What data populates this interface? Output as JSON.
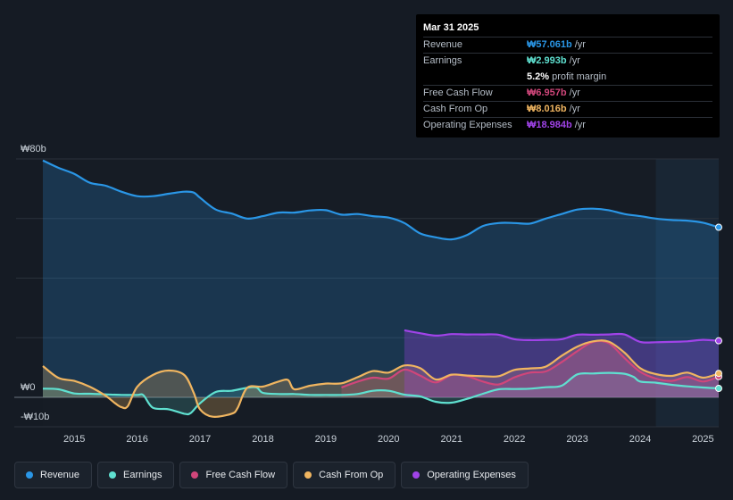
{
  "chart_data": {
    "type": "area",
    "currency": "₩",
    "y_axis": {
      "top_label": "₩80b",
      "zero_label": "₩0",
      "bottom_label": "-₩10b",
      "ylim": [
        -10,
        80
      ]
    },
    "x_axis": {
      "ticks": [
        "2015",
        "2016",
        "2017",
        "2018",
        "2019",
        "2020",
        "2021",
        "2022",
        "2023",
        "2024",
        "2025"
      ],
      "xlim": [
        2014.5,
        2025.25
      ]
    },
    "forecast_start": 2024.25,
    "series": [
      {
        "name": "Revenue",
        "color": "#2a96e6",
        "points": [
          [
            2014.5,
            79.5
          ],
          [
            2014.75,
            77
          ],
          [
            2015.0,
            75
          ],
          [
            2015.25,
            72
          ],
          [
            2015.5,
            71
          ],
          [
            2015.75,
            69
          ],
          [
            2016.0,
            67.5
          ],
          [
            2016.25,
            67.5
          ],
          [
            2016.5,
            68.3
          ],
          [
            2016.75,
            69
          ],
          [
            2016.9,
            68.7
          ],
          [
            2017.0,
            67
          ],
          [
            2017.25,
            63
          ],
          [
            2017.5,
            61.7
          ],
          [
            2017.75,
            60
          ],
          [
            2018.0,
            60.8
          ],
          [
            2018.25,
            62
          ],
          [
            2018.5,
            62
          ],
          [
            2018.75,
            62.7
          ],
          [
            2019.0,
            62.8
          ],
          [
            2019.25,
            61.3
          ],
          [
            2019.5,
            61.5
          ],
          [
            2019.75,
            60.8
          ],
          [
            2020.0,
            60.3
          ],
          [
            2020.25,
            58.5
          ],
          [
            2020.5,
            55
          ],
          [
            2020.75,
            53.7
          ],
          [
            2021.0,
            53
          ],
          [
            2021.25,
            54.5
          ],
          [
            2021.5,
            57.5
          ],
          [
            2021.75,
            58.5
          ],
          [
            2022.0,
            58.5
          ],
          [
            2022.25,
            58.3
          ],
          [
            2022.5,
            60
          ],
          [
            2022.75,
            61.5
          ],
          [
            2023.0,
            63
          ],
          [
            2023.25,
            63.3
          ],
          [
            2023.5,
            62.8
          ],
          [
            2023.75,
            61.5
          ],
          [
            2024.0,
            60.8
          ],
          [
            2024.25,
            60
          ],
          [
            2024.5,
            59.5
          ],
          [
            2024.75,
            59.3
          ],
          [
            2025.0,
            58.6
          ],
          [
            2025.25,
            57.06
          ]
        ]
      },
      {
        "name": "Earnings",
        "color": "#5fe0d0",
        "points": [
          [
            2014.5,
            2.9
          ],
          [
            2014.75,
            2.7
          ],
          [
            2015.0,
            1.3
          ],
          [
            2015.25,
            1.2
          ],
          [
            2015.5,
            1
          ],
          [
            2015.75,
            0.8
          ],
          [
            2016.0,
            0.8
          ],
          [
            2016.1,
            0.7
          ],
          [
            2016.25,
            -3.5
          ],
          [
            2016.5,
            -4
          ],
          [
            2016.75,
            -5.5
          ],
          [
            2016.85,
            -5.3
          ],
          [
            2017.0,
            -2
          ],
          [
            2017.25,
            1.8
          ],
          [
            2017.5,
            2.2
          ],
          [
            2017.75,
            3.2
          ],
          [
            2017.9,
            3.3
          ],
          [
            2018.0,
            1.5
          ],
          [
            2018.25,
            1.1
          ],
          [
            2018.5,
            1.1
          ],
          [
            2018.75,
            0.8
          ],
          [
            2019.0,
            0.8
          ],
          [
            2019.25,
            0.8
          ],
          [
            2019.5,
            1.1
          ],
          [
            2019.75,
            2.2
          ],
          [
            2020.0,
            2.2
          ],
          [
            2020.25,
            0.9
          ],
          [
            2020.5,
            0.3
          ],
          [
            2020.75,
            -1.5
          ],
          [
            2021.0,
            -1.8
          ],
          [
            2021.25,
            -0.5
          ],
          [
            2021.5,
            1.2
          ],
          [
            2021.75,
            2.7
          ],
          [
            2022.0,
            2.8
          ],
          [
            2022.25,
            2.9
          ],
          [
            2022.5,
            3.4
          ],
          [
            2022.75,
            3.9
          ],
          [
            2023.0,
            7.7
          ],
          [
            2023.25,
            8
          ],
          [
            2023.5,
            8.2
          ],
          [
            2023.75,
            7.9
          ],
          [
            2023.9,
            6.8
          ],
          [
            2024.0,
            5.3
          ],
          [
            2024.25,
            4.9
          ],
          [
            2024.5,
            4.2
          ],
          [
            2024.75,
            3.7
          ],
          [
            2025.0,
            3.3
          ],
          [
            2025.25,
            2.99
          ]
        ]
      },
      {
        "name": "Free Cash Flow",
        "color": "#d0467a",
        "points": [
          [
            2019.25,
            3.3
          ],
          [
            2019.5,
            5.2
          ],
          [
            2019.75,
            6.6
          ],
          [
            2020.0,
            6.3
          ],
          [
            2020.25,
            9.3
          ],
          [
            2020.5,
            7.3
          ],
          [
            2020.75,
            5
          ],
          [
            2021.0,
            7.5
          ],
          [
            2021.25,
            7.1
          ],
          [
            2021.5,
            5.3
          ],
          [
            2021.75,
            4.3
          ],
          [
            2022.0,
            6.7
          ],
          [
            2022.25,
            8.3
          ],
          [
            2022.5,
            8.7
          ],
          [
            2022.75,
            11.8
          ],
          [
            2023.0,
            15.5
          ],
          [
            2023.25,
            18.6
          ],
          [
            2023.5,
            18.2
          ],
          [
            2023.75,
            13.2
          ],
          [
            2024.0,
            8.6
          ],
          [
            2024.25,
            6.3
          ],
          [
            2024.5,
            5.5
          ],
          [
            2024.75,
            6.8
          ],
          [
            2025.0,
            5.3
          ],
          [
            2025.25,
            6.96
          ]
        ]
      },
      {
        "name": "Cash From Op",
        "color": "#f0b560",
        "points": [
          [
            2014.5,
            10.5
          ],
          [
            2014.75,
            6.5
          ],
          [
            2015.0,
            5.5
          ],
          [
            2015.25,
            3.5
          ],
          [
            2015.5,
            0.5
          ],
          [
            2015.65,
            -2
          ],
          [
            2015.75,
            -3.3
          ],
          [
            2015.85,
            -3
          ],
          [
            2016.0,
            3.5
          ],
          [
            2016.25,
            7.5
          ],
          [
            2016.5,
            9
          ],
          [
            2016.75,
            7.5
          ],
          [
            2016.9,
            1.5
          ],
          [
            2017.0,
            -4
          ],
          [
            2017.2,
            -6.5
          ],
          [
            2017.5,
            -5.5
          ],
          [
            2017.6,
            -3.5
          ],
          [
            2017.75,
            3.2
          ],
          [
            2018.0,
            3.6
          ],
          [
            2018.25,
            5.3
          ],
          [
            2018.4,
            5.8
          ],
          [
            2018.5,
            2.7
          ],
          [
            2018.75,
            3.9
          ],
          [
            2019.0,
            4.6
          ],
          [
            2019.25,
            4.7
          ],
          [
            2019.5,
            6.7
          ],
          [
            2019.75,
            8.8
          ],
          [
            2020.0,
            8.3
          ],
          [
            2020.25,
            10.7
          ],
          [
            2020.5,
            9.8
          ],
          [
            2020.75,
            6
          ],
          [
            2021.0,
            7.6
          ],
          [
            2021.25,
            7.3
          ],
          [
            2021.5,
            7.1
          ],
          [
            2021.75,
            7.1
          ],
          [
            2022.0,
            9.2
          ],
          [
            2022.25,
            9.7
          ],
          [
            2022.5,
            10.3
          ],
          [
            2022.75,
            13.9
          ],
          [
            2023.0,
            17
          ],
          [
            2023.25,
            18.8
          ],
          [
            2023.5,
            18.7
          ],
          [
            2023.75,
            15
          ],
          [
            2024.0,
            9.8
          ],
          [
            2024.25,
            7.8
          ],
          [
            2024.5,
            7.2
          ],
          [
            2024.75,
            8.3
          ],
          [
            2025.0,
            6.6
          ],
          [
            2025.25,
            8.02
          ]
        ]
      },
      {
        "name": "Operating Expenses",
        "color": "#a043e8",
        "points": [
          [
            2020.25,
            22.5
          ],
          [
            2020.5,
            21.5
          ],
          [
            2020.75,
            20.7
          ],
          [
            2021.0,
            21.2
          ],
          [
            2021.25,
            21.1
          ],
          [
            2021.5,
            21.1
          ],
          [
            2021.75,
            21
          ],
          [
            2022.0,
            19.5
          ],
          [
            2022.25,
            19.2
          ],
          [
            2022.5,
            19.3
          ],
          [
            2022.75,
            19.5
          ],
          [
            2023.0,
            21
          ],
          [
            2023.25,
            21
          ],
          [
            2023.5,
            21.1
          ],
          [
            2023.75,
            21.1
          ],
          [
            2024.0,
            18.6
          ],
          [
            2024.25,
            18.5
          ],
          [
            2024.5,
            18.6
          ],
          [
            2024.75,
            18.8
          ],
          [
            2025.0,
            19.3
          ],
          [
            2025.25,
            18.98
          ]
        ]
      }
    ]
  },
  "tooltip": {
    "date": "Mar 31 2025",
    "rows": [
      {
        "label": "Revenue",
        "value": "₩57.061b",
        "unit": "/yr",
        "color": "#2a96e6"
      },
      {
        "label": "Earnings",
        "value": "₩2.993b",
        "unit": "/yr",
        "color": "#5fe0d0"
      },
      {
        "label": "",
        "value": "5.2%",
        "unit": "profit margin",
        "color": "#ffffff"
      },
      {
        "label": "Free Cash Flow",
        "value": "₩6.957b",
        "unit": "/yr",
        "color": "#d0467a"
      },
      {
        "label": "Cash From Op",
        "value": "₩8.016b",
        "unit": "/yr",
        "color": "#f0b560"
      },
      {
        "label": "Operating Expenses",
        "value": "₩18.984b",
        "unit": "/yr",
        "color": "#a043e8"
      }
    ]
  },
  "legend": [
    {
      "label": "Revenue",
      "color": "#2a96e6"
    },
    {
      "label": "Earnings",
      "color": "#5fe0d0"
    },
    {
      "label": "Free Cash Flow",
      "color": "#d0467a"
    },
    {
      "label": "Cash From Op",
      "color": "#f0b560"
    },
    {
      "label": "Operating Expenses",
      "color": "#a043e8"
    }
  ]
}
